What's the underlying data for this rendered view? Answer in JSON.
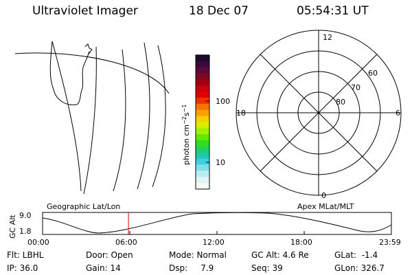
{
  "header": {
    "instrument": "Ultraviolet Imager",
    "date": "18 Dec 07",
    "time": "05:54:31 UT"
  },
  "colorbar": {
    "label_html": "photon cm-2s-1",
    "tick_100": "100",
    "tick_10": "10",
    "colors": [
      "#1a0a2e",
      "#3a0a3a",
      "#5a0a3a",
      "#7a0a20",
      "#a00010",
      "#c80010",
      "#e00000",
      "#f03000",
      "#f87000",
      "#f8a000",
      "#f8d000",
      "#d8f000",
      "#a0f000",
      "#60e800",
      "#30e020",
      "#20d060",
      "#20c8b0",
      "#40d0e0",
      "#80e0e8",
      "#b8ecf0",
      "#e0f4f4",
      "#f4f8f8"
    ]
  },
  "polar": {
    "label_12": "12",
    "label_18": "18",
    "label_6": "6",
    "label_0": "0",
    "label_60": "60",
    "label_70": "70",
    "label_80": "80"
  },
  "timeline": {
    "geo_label": "Geographic Lat/Lon",
    "apex_label": "Apex MLat/MLT",
    "yaxis_title": "GC Alt",
    "y_top": "9.0",
    "y_bottom": "1.8",
    "x_ticks": [
      "00:00",
      "06:00",
      "12:00",
      "18:00",
      "23:59"
    ],
    "marker_time": "05:54:31",
    "marker_fraction": 0.2462,
    "marker_color": "#e00000"
  },
  "status": {
    "flt": "Flt: LBHL",
    "ip": "IP: 36.0",
    "door": "Door: Open",
    "gain": "Gain: 14",
    "mode": "Mode: Normal",
    "dsp": "Dsp:     7.9",
    "gcalt": "GC Alt: 4.6 Re",
    "seq": "Seq: 39",
    "glat": "GLat:  -1.4",
    "glon": "GLon: 326.7"
  }
}
